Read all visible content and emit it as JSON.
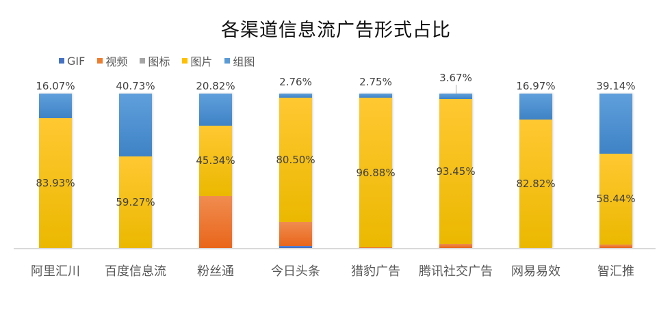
{
  "chart_data": {
    "type": "bar",
    "stacked": true,
    "percent": true,
    "title": "各渠道信息流广告形式占比",
    "xlabel": "",
    "ylabel": "",
    "ylim": [
      0,
      100
    ],
    "grid": false,
    "legend_position": "top-left",
    "categories": [
      "阿里汇川",
      "百度信息流",
      "粉丝通",
      "今日头条",
      "猎豹广告",
      "腾讯社交广告",
      "网易易效",
      "智汇推"
    ],
    "series": [
      {
        "name": "GIF",
        "color": "#4472c4",
        "values": [
          0,
          0,
          0,
          1.14,
          0,
          0,
          0,
          0
        ]
      },
      {
        "name": "视频",
        "color": "#ed7d31",
        "values": [
          0,
          0,
          33.84,
          15.6,
          0.37,
          2.88,
          0.21,
          2.42
        ]
      },
      {
        "name": "图标",
        "color": "#a5a5a5",
        "values": [
          0,
          0,
          0,
          0,
          0,
          0,
          0,
          0
        ]
      },
      {
        "name": "图片",
        "color": "#ffc000",
        "values": [
          83.93,
          59.27,
          45.34,
          80.5,
          96.88,
          93.45,
          82.82,
          58.44
        ]
      },
      {
        "name": "组图",
        "color": "#5b9bd5",
        "values": [
          16.07,
          40.73,
          20.82,
          2.76,
          2.75,
          3.67,
          16.97,
          39.14
        ]
      }
    ],
    "data_labels": {
      "图片": [
        "83.93%",
        "59.27%",
        "45.34%",
        "80.50%",
        "96.88%",
        "93.45%",
        "82.82%",
        "58.44%"
      ],
      "组图": [
        "16.07%",
        "40.73%",
        "20.82%",
        "2.76%",
        "2.75%",
        "3.67%",
        "16.97%",
        "39.14%"
      ]
    }
  },
  "title": "各渠道信息流广告形式占比",
  "legend": [
    {
      "label": "GIF",
      "color": "#4472c4"
    },
    {
      "label": "视频",
      "color": "#ed7d31"
    },
    {
      "label": "图标",
      "color": "#a5a5a5"
    },
    {
      "label": "图片",
      "color": "#ffc000"
    },
    {
      "label": "组图",
      "color": "#5b9bd5"
    }
  ]
}
